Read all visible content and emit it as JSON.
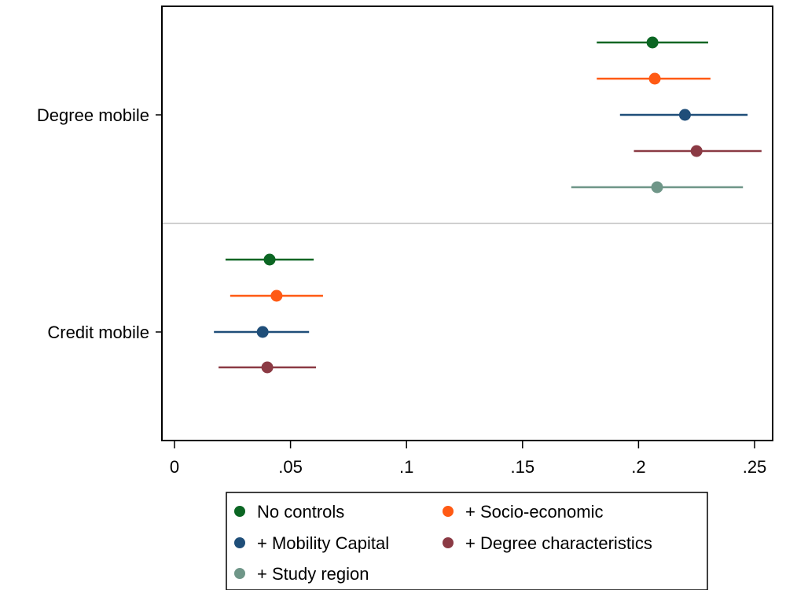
{
  "chart_data": {
    "type": "scatter",
    "subtype": "coefficient-plot-with-confidence-intervals",
    "title": "",
    "xlabel": "",
    "ylabel": "",
    "xlim": [
      -0.005,
      0.255
    ],
    "x_ticks": [
      0,
      0.05,
      0.1,
      0.15,
      0.2,
      0.25
    ],
    "x_tick_labels": [
      "0",
      ".05",
      ".1",
      ".15",
      ".2",
      ".25"
    ],
    "grid": false,
    "legend_position": "bottom",
    "groups": [
      {
        "label": "Degree mobile",
        "estimates": [
          {
            "series": "No controls",
            "value": 0.206,
            "ci": [
              0.182,
              0.23
            ]
          },
          {
            "series": "+ Socio-economic",
            "value": 0.207,
            "ci": [
              0.182,
              0.231
            ]
          },
          {
            "series": "+ Mobility Capital",
            "value": 0.22,
            "ci": [
              0.192,
              0.247
            ]
          },
          {
            "series": "+ Degree characteristics",
            "value": 0.225,
            "ci": [
              0.198,
              0.253
            ]
          },
          {
            "series": "+ Study region",
            "value": 0.208,
            "ci": [
              0.171,
              0.245
            ]
          }
        ]
      },
      {
        "label": "Credit mobile",
        "estimates": [
          {
            "series": "No controls",
            "value": 0.041,
            "ci": [
              0.022,
              0.06
            ]
          },
          {
            "series": "+ Socio-economic",
            "value": 0.044,
            "ci": [
              0.024,
              0.064
            ]
          },
          {
            "series": "+ Mobility Capital",
            "value": 0.038,
            "ci": [
              0.017,
              0.058
            ]
          },
          {
            "series": "+ Degree characteristics",
            "value": 0.04,
            "ci": [
              0.019,
              0.061
            ]
          }
        ]
      }
    ],
    "series": [
      {
        "name": "No controls",
        "color": "#0b6623"
      },
      {
        "name": "+ Socio-economic",
        "color": "#ff5a14"
      },
      {
        "name": "+ Mobility Capital",
        "color": "#1f4e79"
      },
      {
        "name": "+ Degree characteristics",
        "color": "#8b3a44"
      },
      {
        "name": "+ Study region",
        "color": "#6f9688"
      }
    ]
  }
}
